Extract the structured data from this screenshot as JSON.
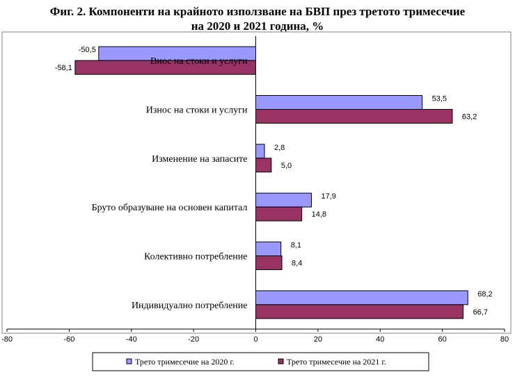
{
  "title_line1": "Фиг. 2. Компоненти на крайното използване на БВП през третото тримесечие",
  "title_line2": "на 2020 и 2021 година, %",
  "colors": {
    "series_2020": "#9999FF",
    "series_2021": "#993366",
    "axis": "#000000",
    "border": "#808080"
  },
  "chart_data": {
    "type": "bar",
    "orientation": "horizontal",
    "title": "Фиг. 2. Компоненти на крайното използване на БВП през третото тримесечие на 2020 и 2021 година, %",
    "categories": [
      "Внос на стоки и услуги",
      "Износ на стоки и услуги",
      "Изменение на запасите",
      "Бруто образуване на основен капитал",
      "Колективно потребление",
      "Индивидуално потребление"
    ],
    "series": [
      {
        "name": "Трето тримесечие на 2020 г.",
        "values": [
          -50.5,
          53.5,
          2.8,
          17.9,
          8.1,
          68.2
        ],
        "labels": [
          "-50,5",
          "53,5",
          "2,8",
          "17,9",
          "8,1",
          "68,2"
        ]
      },
      {
        "name": "Трето тримесечие на 2021 г.",
        "values": [
          -58.1,
          63.2,
          5.0,
          14.8,
          8.4,
          66.7
        ],
        "labels": [
          "-58,1",
          "63,2",
          "5,0",
          "14,8",
          "8,4",
          "66,7"
        ]
      }
    ],
    "xlim": [
      -80,
      80
    ],
    "xticks": [
      -80,
      -60,
      -40,
      -20,
      0,
      20,
      40,
      60,
      80
    ],
    "xtick_labels": [
      "-80",
      "-60",
      "-40",
      "-20",
      "0",
      "20",
      "40",
      "60",
      "80"
    ],
    "grid": false,
    "legend_position": "bottom"
  }
}
